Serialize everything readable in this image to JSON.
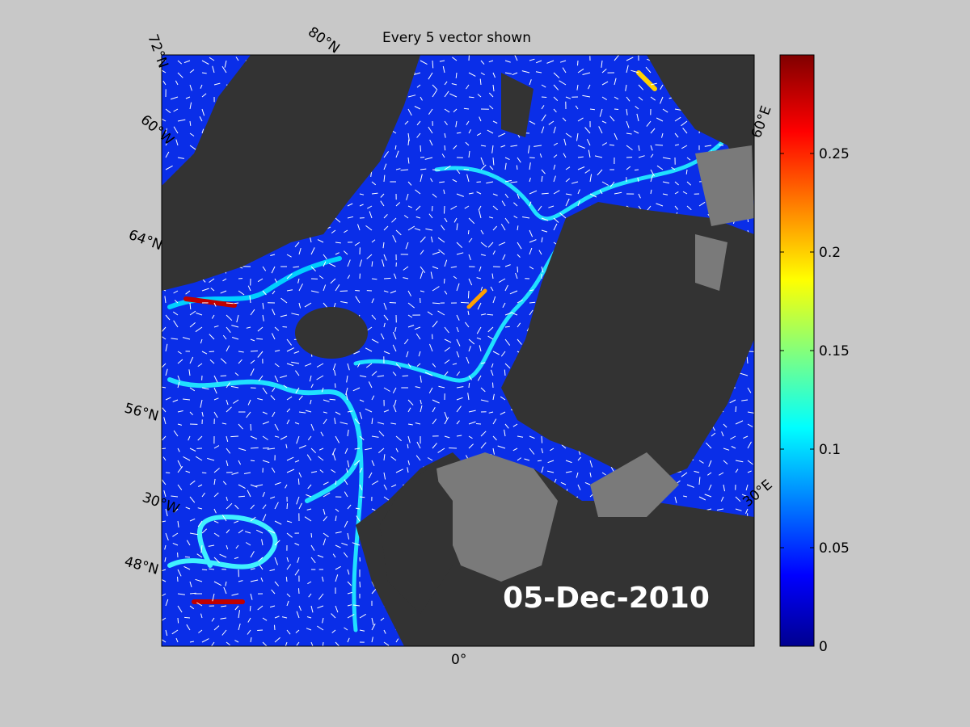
{
  "title": "Every 5 vector shown",
  "annotation": "05-Dec-2010",
  "map": {
    "graticule_labels": [
      "72°N",
      "80°N",
      "60°W",
      "64°N",
      "56°N",
      "30°W",
      "48°N",
      "0°",
      "30°E",
      "60°E"
    ]
  },
  "colorbar": {
    "lim": [
      0,
      0.3
    ],
    "ticks": [
      0,
      0.05,
      0.1,
      0.15,
      0.2,
      0.25
    ]
  }
}
